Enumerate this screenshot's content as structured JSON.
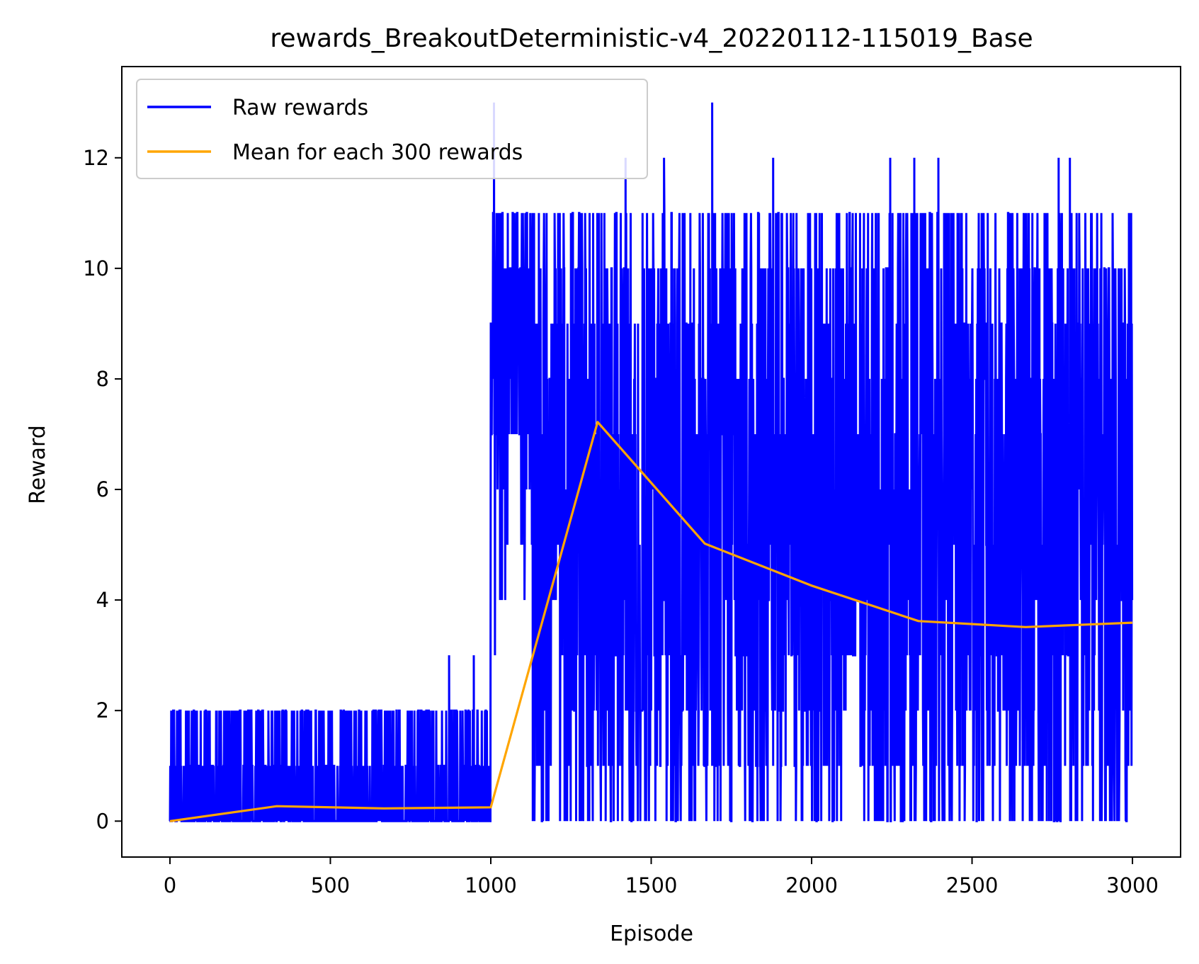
{
  "chart_data": {
    "type": "line",
    "title": "rewards_BreakoutDeterministic-v4_20220112-115019_Base",
    "xlabel": "Episode",
    "ylabel": "Reward",
    "xlim": [
      -150,
      3150
    ],
    "ylim": [
      -0.65,
      13.65
    ],
    "xticks": [
      0,
      500,
      1000,
      1500,
      2000,
      2500,
      3000
    ],
    "yticks": [
      0,
      2,
      4,
      6,
      8,
      10,
      12
    ],
    "grid": false,
    "legend": {
      "position": "top-left",
      "entries": [
        "Raw rewards",
        "Mean for each 300 rewards"
      ]
    },
    "series": [
      {
        "name": "Raw rewards",
        "color": "#0000ff",
        "note_segments": [
          {
            "x_start": 0,
            "x_end": 1000,
            "min": 0,
            "max": 2,
            "spikes": [
              {
                "x": 870,
                "y": 3
              },
              {
                "x": 947,
                "y": 3
              }
            ]
          },
          {
            "x_start": 1000,
            "x_end": 1130,
            "min": 3,
            "max": 11,
            "spikes": [
              {
                "x": 1010,
                "y": 13
              }
            ]
          },
          {
            "x_start": 1130,
            "x_end": 3000,
            "min": 0,
            "max": 11,
            "spikes": [
              {
                "x": 1420,
                "y": 12
              },
              {
                "x": 1540,
                "y": 12
              },
              {
                "x": 1690,
                "y": 13
              },
              {
                "x": 1880,
                "y": 12
              },
              {
                "x": 2245,
                "y": 12
              },
              {
                "x": 2320,
                "y": 12
              },
              {
                "x": 2395,
                "y": 12
              },
              {
                "x": 2770,
                "y": 12
              },
              {
                "x": 2805,
                "y": 12
              }
            ]
          }
        ]
      },
      {
        "name": "Mean for each 300 rewards",
        "color": "#ffa500",
        "x": [
          0,
          333,
          667,
          1000,
          1333,
          1667,
          2000,
          2333,
          2667,
          3000
        ],
        "y": [
          0.0,
          0.27,
          0.23,
          0.25,
          7.22,
          5.02,
          4.26,
          3.62,
          3.51,
          3.59
        ]
      }
    ]
  }
}
